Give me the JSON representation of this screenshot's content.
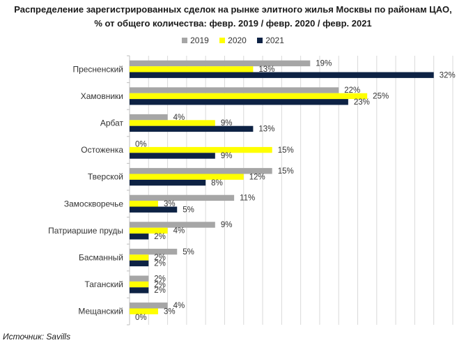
{
  "chart_data": {
    "type": "bar",
    "orientation": "horizontal",
    "title_line1": "Распределение зарегистрированных  сделок на рынке элитного жилья Москвы по районам ЦАО,",
    "title_line2": "% от общего количества:  февр. 2019  / февр. 2020  / февр. 2021",
    "categories": [
      "Пресненский",
      "Хамовники",
      "Арбат",
      "Остоженка",
      "Тверской",
      "Замоскворечье",
      "Патриаршие пруды",
      "Басманный",
      "Таганский",
      "Мещанский"
    ],
    "series": [
      {
        "name": "2019",
        "color": "#a6a6a6",
        "values": [
          19,
          22,
          4,
          0,
          15,
          11,
          9,
          5,
          2,
          4
        ]
      },
      {
        "name": "2020",
        "color": "#ffff00",
        "values": [
          13,
          25,
          9,
          15,
          12,
          3,
          4,
          2,
          2,
          3
        ]
      },
      {
        "name": "2021",
        "color": "#0d2244",
        "values": [
          32,
          23,
          13,
          9,
          8,
          5,
          2,
          2,
          2,
          0
        ]
      }
    ],
    "value_suffix": "%",
    "xlim": [
      0,
      34
    ],
    "grid": "vertical",
    "legend_position": "top"
  },
  "source": "Источник: Savills"
}
